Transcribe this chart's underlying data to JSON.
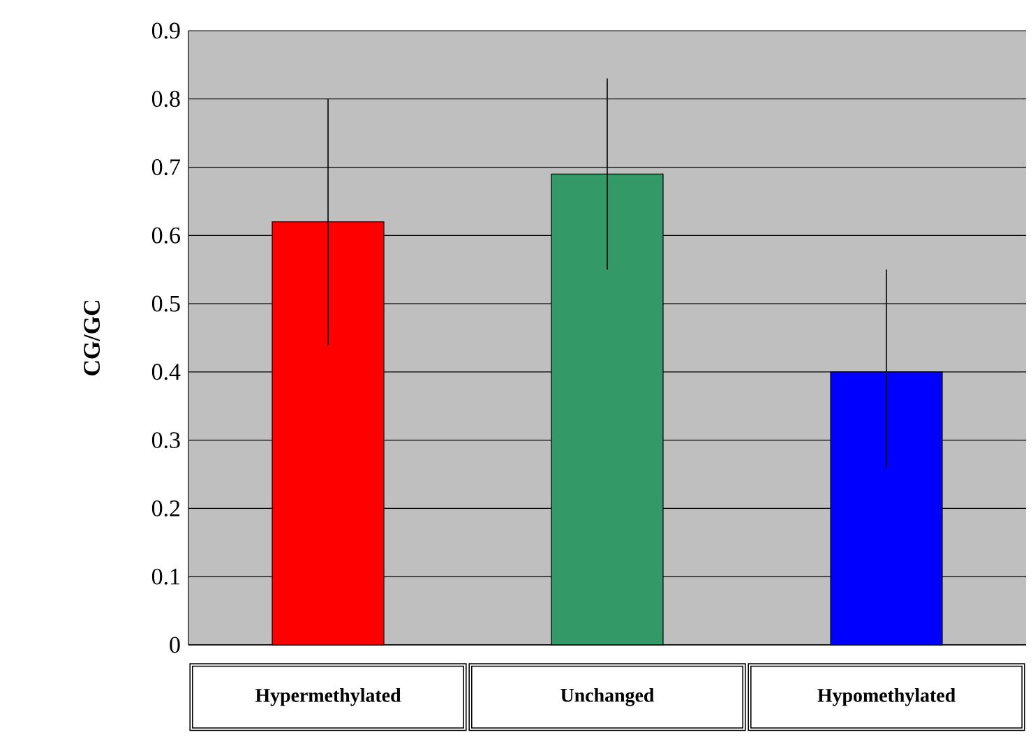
{
  "chart_data": {
    "type": "bar",
    "ylabel": "CG/GC",
    "categories": [
      "Hypermethylated",
      "Unchanged",
      "Hypomethylated"
    ],
    "values": [
      0.62,
      0.69,
      0.4
    ],
    "colors": [
      "#ff0000",
      "#339966",
      "#0000ff"
    ],
    "errors": [
      [
        0.44,
        0.8
      ],
      [
        0.55,
        0.83
      ],
      [
        0.26,
        0.55
      ]
    ],
    "ylim": [
      0,
      0.9
    ],
    "yticks": [
      0,
      0.1,
      0.2,
      0.3,
      0.4,
      0.5,
      0.6,
      0.7,
      0.8,
      0.9
    ],
    "grid": "y"
  }
}
